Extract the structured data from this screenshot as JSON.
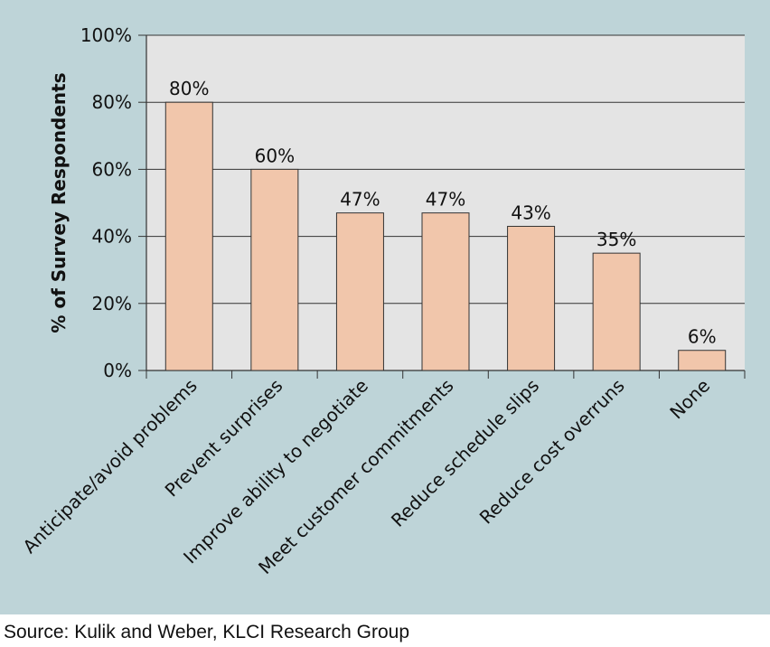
{
  "chart_data": {
    "type": "bar",
    "title": "",
    "xlabel": "",
    "ylabel": "% of Survey Respondents",
    "categories": [
      "Anticipate/avoid problems",
      "Prevent surprises",
      "Improve ability to negotiate",
      "Meet customer commitments",
      "Reduce schedule slips",
      "Reduce cost overruns",
      "None"
    ],
    "values": [
      80,
      60,
      47,
      47,
      43,
      35,
      6
    ],
    "data_labels": [
      "80%",
      "60%",
      "47%",
      "47%",
      "43%",
      "35%",
      "6%"
    ],
    "ylim": [
      0,
      100
    ],
    "yticks": [
      0,
      20,
      40,
      60,
      80,
      100
    ],
    "ytick_labels": [
      "0%",
      "20%",
      "40%",
      "60%",
      "80%",
      "100%"
    ],
    "grid": true,
    "legend": "none",
    "colors": {
      "panel_background": "#bed4d8",
      "plot_background": "#e4e4e4",
      "bar_fill": "#f1c6ab",
      "bar_stroke": "#333333",
      "gridline": "#333333"
    }
  },
  "source_note": "Source: Kulik and Weber, KLCI Research Group"
}
